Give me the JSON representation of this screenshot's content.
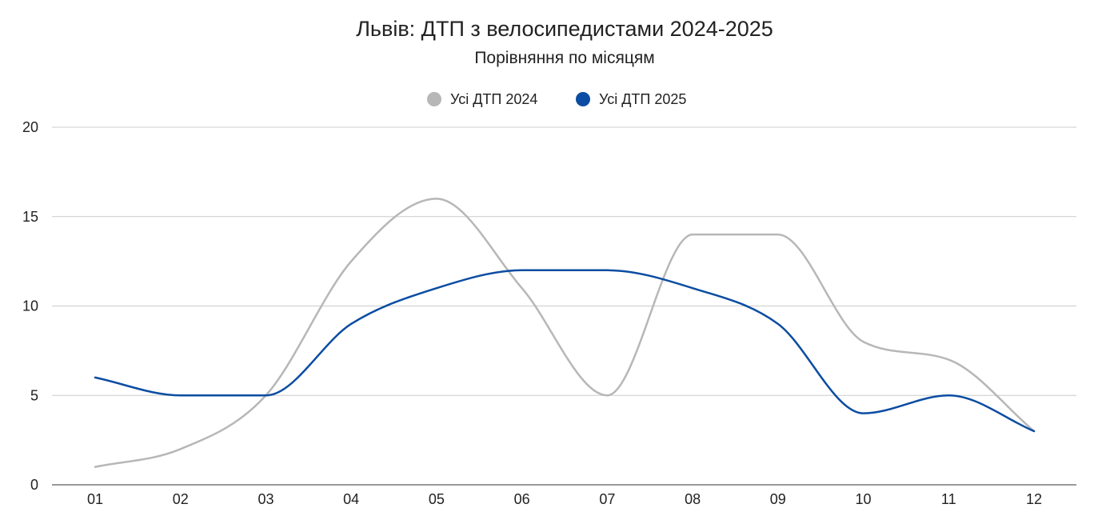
{
  "chart_data": {
    "type": "line",
    "title": "Львів: ДТП з велосипедистами 2024-2025",
    "subtitle": "Порівняння по місяцям",
    "xlabel": "",
    "ylabel": "",
    "categories": [
      "01",
      "02",
      "03",
      "04",
      "05",
      "06",
      "07",
      "08",
      "09",
      "10",
      "11",
      "12"
    ],
    "ylim": [
      0,
      20
    ],
    "yticks": [
      0,
      5,
      10,
      15,
      20
    ],
    "grid": true,
    "smooth": true,
    "legend": {
      "position": "top-center"
    },
    "series": [
      {
        "name": "Усі ДТП 2024",
        "color": "#b7b7b7",
        "values": [
          1,
          2,
          5,
          12.5,
          16,
          11,
          5,
          14,
          14,
          8,
          7,
          3
        ]
      },
      {
        "name": "Усі ДТП 2025",
        "color": "#0b4da2",
        "values": [
          6,
          5,
          5,
          9,
          11,
          12,
          12,
          11,
          9,
          4,
          5,
          3
        ]
      }
    ]
  }
}
